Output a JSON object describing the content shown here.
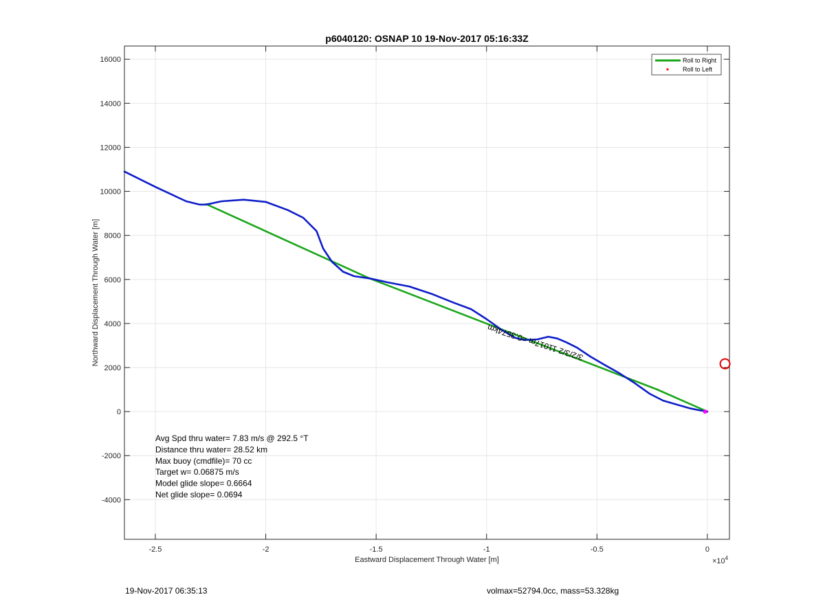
{
  "chart_data": {
    "type": "line",
    "title": "p6040120: OSNAP 10 19-Nov-2017 05:16:33Z",
    "xlabel": "Eastward Displacement Through Water [m]",
    "ylabel": "Northward Displacement Through Water [m]",
    "x_exponent_label": "×10",
    "x_exponent_power": "4",
    "xlim": [
      -26400,
      1000
    ],
    "ylim": [
      -5800,
      16600
    ],
    "x_ticks": [
      -25000,
      -20000,
      -15000,
      -10000,
      -5000,
      0
    ],
    "x_tick_labels": [
      "-2.5",
      "-2",
      "-1.5",
      "-1",
      "-0.5",
      "0"
    ],
    "y_ticks": [
      -4000,
      -2000,
      0,
      2000,
      4000,
      6000,
      8000,
      10000,
      12000,
      14000,
      16000
    ],
    "y_tick_labels": [
      "-4000",
      "-2000",
      "0",
      "2000",
      "4000",
      "6000",
      "8000",
      "10000",
      "12000",
      "14000",
      "16000"
    ],
    "grid": true,
    "legend_position": "top-right",
    "legend": [
      {
        "label": "Roll to Right",
        "color": "#1aa51a",
        "style": "line"
      },
      {
        "label": "Roll to Left",
        "color": "#ff0000",
        "style": "dot"
      }
    ],
    "series": [
      {
        "color": "#1aa51a",
        "x": [
          -1,
          -2270,
          -15300,
          -22700
        ],
        "y": [
          0,
          1000,
          6050,
          9420
        ]
      },
      {
        "color": "#0d1dc8",
        "x": [
          -26400,
          -25000,
          -23600,
          -23000,
          -22700,
          -22000,
          -21000,
          -20000,
          -19000,
          -18300,
          -17700,
          -17400,
          -17000,
          -16500,
          -16000,
          -15300,
          -14500,
          -13500,
          -12500,
          -11500,
          -10700,
          -10000,
          -9300,
          -8700,
          -8300,
          -7700,
          -7200,
          -6800,
          -6400,
          -5900,
          -5300,
          -4700,
          -4000,
          -3300,
          -2600,
          -2000,
          -1400,
          -800,
          -300,
          0
        ],
        "y": [
          10900,
          10200,
          9550,
          9400,
          9400,
          9550,
          9620,
          9520,
          9150,
          8800,
          8200,
          7400,
          6800,
          6350,
          6150,
          6050,
          5870,
          5680,
          5350,
          4950,
          4650,
          4200,
          3700,
          3350,
          3250,
          3280,
          3400,
          3320,
          3150,
          2900,
          2500,
          2150,
          1750,
          1300,
          800,
          500,
          320,
          150,
          50,
          0
        ]
      }
    ],
    "marker": {
      "x": 800,
      "y": 2170,
      "color": "#e00000",
      "shape": "open-circle"
    },
    "end_marker": {
      "x": -100,
      "y": 0,
      "color": "#ff00ff"
    },
    "annotation": {
      "text": "3/2/3/2 11017m =0.3574km",
      "x": -5600,
      "y": 2550
    }
  },
  "stats": [
    "Avg Spd thru water=  7.83 m/s @ 292.5 °T",
    "Distance thru water= 28.52 km",
    "Max buoy (cmdfile)= 70 cc",
    "Target w= 0.06875 m/s",
    "Model glide slope= 0.6664",
    "Net glide slope= 0.0694"
  ],
  "footer": {
    "left": "19-Nov-2017 06:35:13",
    "right": "volmax=52794.0cc, mass=53.328kg"
  }
}
